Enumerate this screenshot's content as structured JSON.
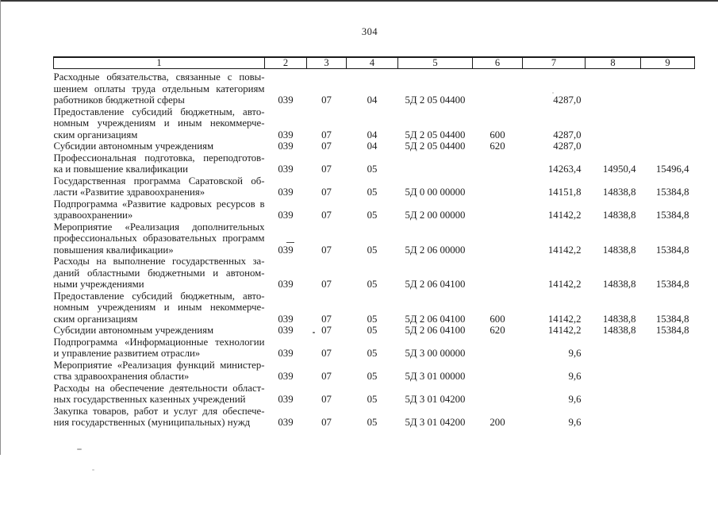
{
  "page": {
    "number": "304"
  },
  "table": {
    "header": [
      "1",
      "2",
      "3",
      "4",
      "5",
      "6",
      "7",
      "8",
      "9"
    ],
    "rows": [
      {
        "lines": [
          "Расходные обязательства, связанные с повы-",
          "шением оплаты труда отдельным категориям",
          "работников бюджетной сферы"
        ],
        "c2": "039",
        "c3": "07",
        "c4": "04",
        "c5": "5Д 2 05 04400",
        "c6": "",
        "c7": "4287,0",
        "c8": "",
        "c9": ""
      },
      {
        "lines": [
          "Предоставление субсидий бюджетным, авто-",
          "номным учреждениям и иным некоммерче-",
          "ским организациям"
        ],
        "c2": "039",
        "c3": "07",
        "c4": "04",
        "c5": "5Д 2 05 04400",
        "c6": "600",
        "c7": "4287,0",
        "c8": "",
        "c9": ""
      },
      {
        "lines": [
          "Субсидии автономным учреждениям"
        ],
        "c2": "039",
        "c3": "07",
        "c4": "04",
        "c5": "5Д 2 05 04400",
        "c6": "620",
        "c7": "4287,0",
        "c8": "",
        "c9": ""
      },
      {
        "lines": [
          "Профессиональная подготовка, переподготов-",
          "ка и повышение квалификации"
        ],
        "c2": "039",
        "c3": "07",
        "c4": "05",
        "c5": "",
        "c6": "",
        "c7": "14263,4",
        "c8": "14950,4",
        "c9": "15496,4"
      },
      {
        "lines": [
          "Государственная программа Саратовской об-",
          "ласти «Развитие здравоохранения»"
        ],
        "c2": "039",
        "c3": "07",
        "c4": "05",
        "c5": "5Д 0 00 00000",
        "c6": "",
        "c7": "14151,8",
        "c8": "14838,8",
        "c9": "15384,8"
      },
      {
        "lines": [
          "Подпрограмма «Развитие кадровых ресурсов в",
          "здравоохранении»"
        ],
        "c2": "039",
        "c3": "07",
        "c4": "05",
        "c5": "5Д 2 00 00000",
        "c6": "",
        "c7": "14142,2",
        "c8": "14838,8",
        "c9": "15384,8"
      },
      {
        "lines": [
          "Мероприятие «Реализация дополнительных",
          "профессиональных образовательных программ",
          "повышения квалификации»"
        ],
        "c2": "039",
        "c3": "07",
        "c4": "05",
        "c5": "5Д 2 06 00000",
        "c6": "",
        "c7": "14142,2",
        "c8": "14838,8",
        "c9": "15384,8"
      },
      {
        "lines": [
          "Расходы на выполнение государственных за-",
          "даний областными бюджетными и автоном-",
          "ными учреждениями"
        ],
        "c2": "039",
        "c3": "07",
        "c4": "05",
        "c5": "5Д 2 06 04100",
        "c6": "",
        "c7": "14142,2",
        "c8": "14838,8",
        "c9": "15384,8"
      },
      {
        "lines": [
          "Предоставление субсидий бюджетным, авто-",
          "номным учреждениям и иным некоммерче-",
          "ским организациям"
        ],
        "c2": "039",
        "c3": "07",
        "c4": "05",
        "c5": "5Д 2 06 04100",
        "c6": "600",
        "c7": "14142,2",
        "c8": "14838,8",
        "c9": "15384,8"
      },
      {
        "lines": [
          "Субсидии автономным учреждениям"
        ],
        "c2": "039",
        "c3": "07",
        "c4": "05",
        "c5": "5Д 2 06 04100",
        "c6": "620",
        "c7": "14142,2",
        "c8": "14838,8",
        "c9": "15384,8"
      },
      {
        "lines": [
          "Подпрограмма «Информационные технологии",
          "и управление развитием отрасли»"
        ],
        "c2": "039",
        "c3": "07",
        "c4": "05",
        "c5": "5Д 3 00 00000",
        "c6": "",
        "c7": "9,6",
        "c8": "",
        "c9": ""
      },
      {
        "lines": [
          "Мероприятие «Реализация функций министер-",
          "ства здравоохранения области»"
        ],
        "c2": "039",
        "c3": "07",
        "c4": "05",
        "c5": "5Д 3 01 00000",
        "c6": "",
        "c7": "9,6",
        "c8": "",
        "c9": ""
      },
      {
        "lines": [
          "Расходы на обеспечение деятельности област-",
          "ных государственных казенных учреждений"
        ],
        "c2": "039",
        "c3": "07",
        "c4": "05",
        "c5": "5Д 3 01 04200",
        "c6": "",
        "c7": "9,6",
        "c8": "",
        "c9": ""
      },
      {
        "lines": [
          "Закупка товаров, работ и услуг для обеспече-",
          "ния государственных (муниципальных) нужд"
        ],
        "c2": "039",
        "c3": "07",
        "c4": "05",
        "c5": "5Д 3 01 04200",
        "c6": "200",
        "c7": "9,6",
        "c8": "",
        "c9": ""
      }
    ]
  }
}
